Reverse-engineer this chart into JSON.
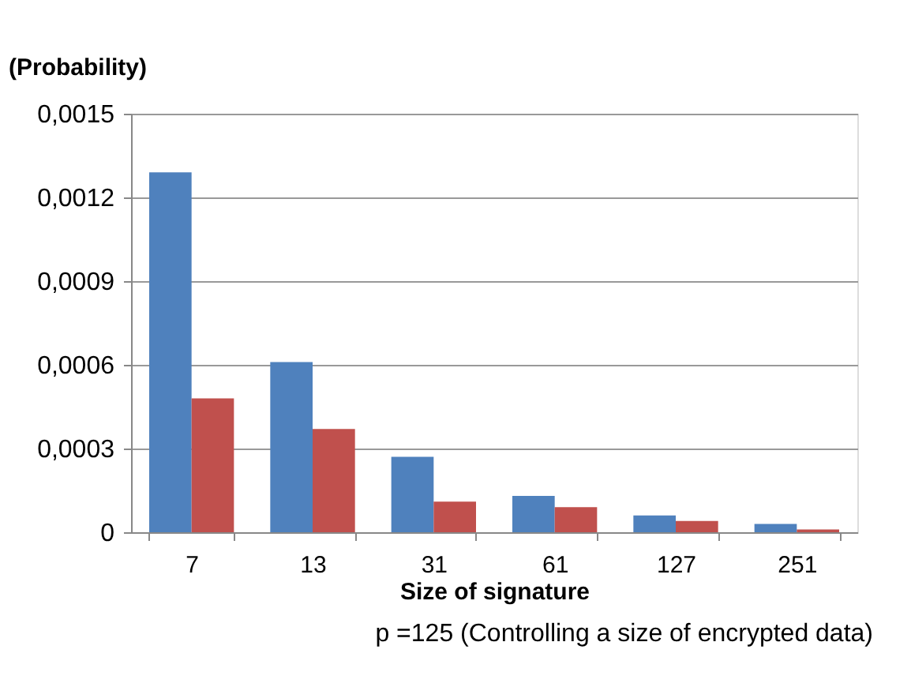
{
  "chart_data": {
    "type": "bar",
    "ylabel": "(Probability)",
    "xlabel": "Size of signature",
    "categories": [
      "7",
      "13",
      "31",
      "61",
      "127",
      "251"
    ],
    "series": [
      {
        "color": "#4f81bd",
        "values": [
          0.00129,
          0.00061,
          0.00027,
          0.00013,
          6e-05,
          3e-05
        ]
      },
      {
        "color": "#c0504d",
        "values": [
          0.00048,
          0.00037,
          0.00011,
          9e-05,
          4e-05,
          1e-05
        ]
      }
    ],
    "ylim": [
      0,
      0.0015
    ],
    "yticks": [
      {
        "value": 0,
        "label": "0"
      },
      {
        "value": 0.0003,
        "label": "0,0003"
      },
      {
        "value": 0.0006,
        "label": "0,0006"
      },
      {
        "value": 0.0009,
        "label": "0,0009"
      },
      {
        "value": 0.0012,
        "label": "0,0012"
      },
      {
        "value": 0.0015,
        "label": "0,0015"
      }
    ],
    "grid": "y",
    "legend": false,
    "annotations": [
      "p =125 (Controlling a size of encrypted data)"
    ]
  }
}
